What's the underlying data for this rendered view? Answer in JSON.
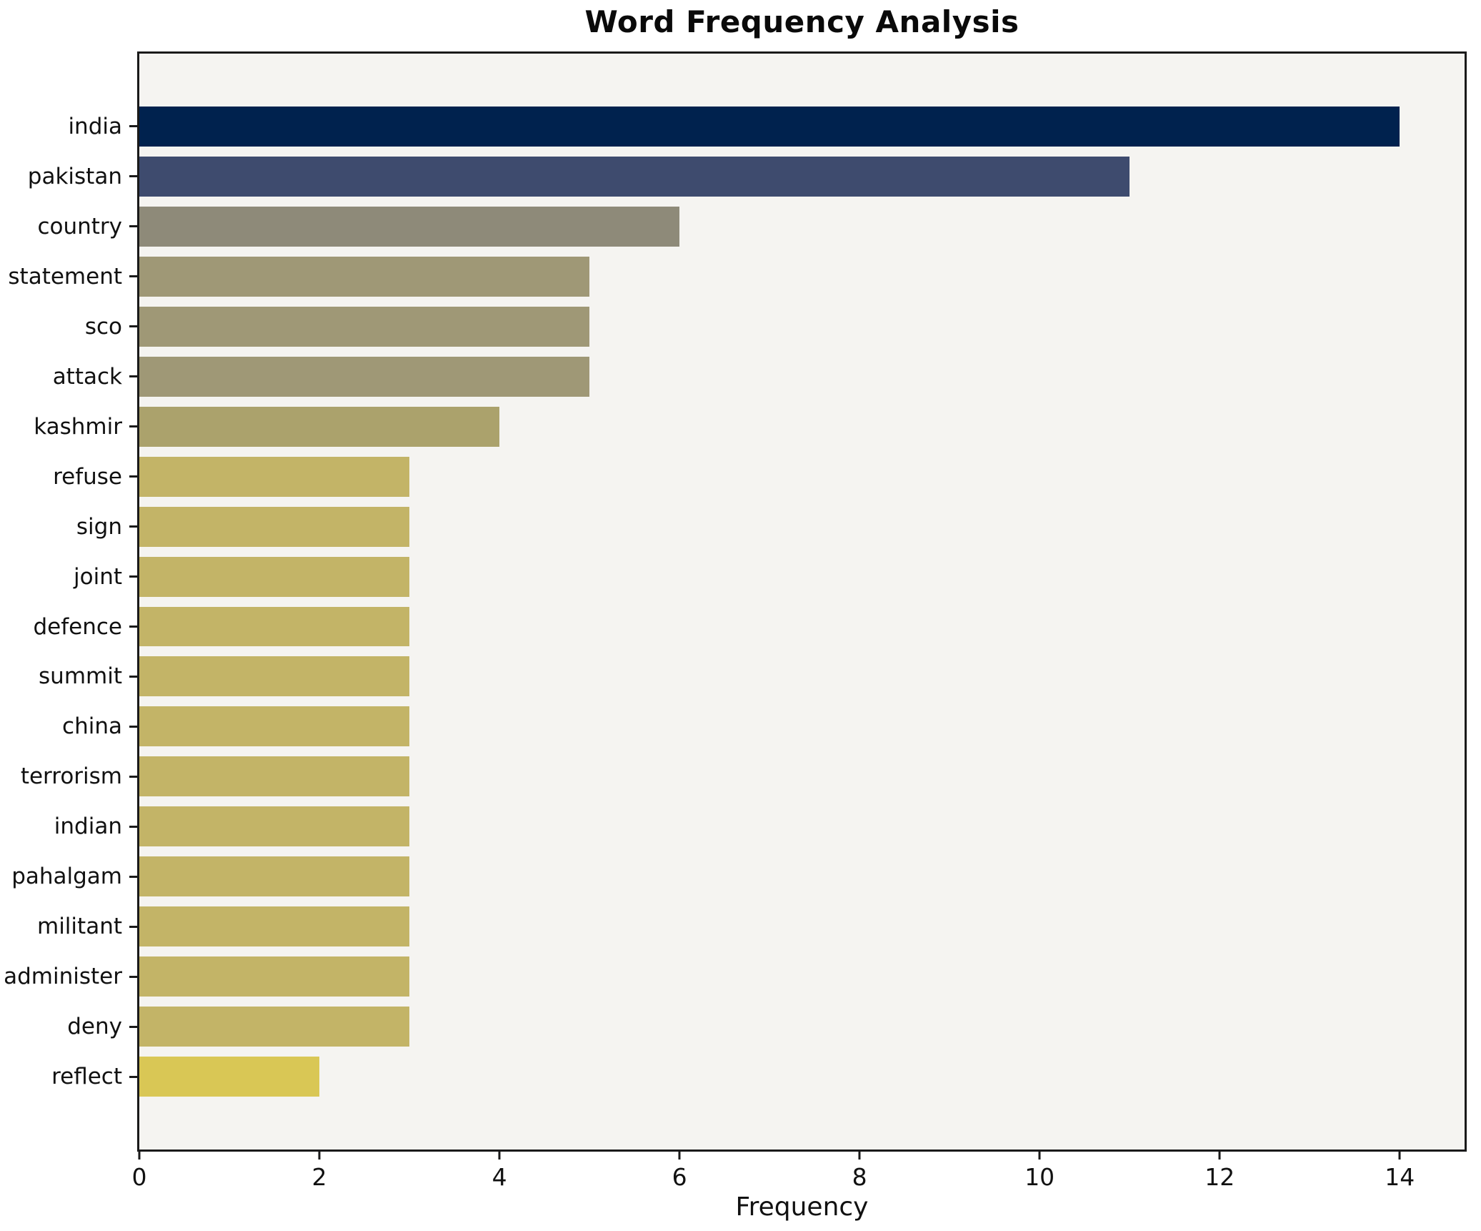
{
  "title": "Word Frequency Analysis",
  "chart_data": {
    "type": "bar",
    "orientation": "horizontal",
    "title": "Word Frequency Analysis",
    "xlabel": "Frequency",
    "ylabel": "",
    "categories": [
      "india",
      "pakistan",
      "country",
      "statement",
      "sco",
      "attack",
      "kashmir",
      "refuse",
      "sign",
      "joint",
      "defence",
      "summit",
      "china",
      "terrorism",
      "indian",
      "pahalgam",
      "militant",
      "administer",
      "deny",
      "reflect"
    ],
    "values": [
      14,
      11,
      6,
      5,
      5,
      5,
      4,
      3,
      3,
      3,
      3,
      3,
      3,
      3,
      3,
      3,
      3,
      3,
      3,
      2
    ],
    "bar_colors": [
      "#00224e",
      "#3e4b6e",
      "#8e8a79",
      "#9f9876",
      "#9f9876",
      "#9f9876",
      "#aba26c",
      "#c3b467",
      "#c3b467",
      "#c3b467",
      "#c3b467",
      "#c3b467",
      "#c3b467",
      "#c3b467",
      "#c3b467",
      "#c3b467",
      "#c3b467",
      "#c3b467",
      "#c3b467",
      "#d9c755"
    ],
    "xlim": [
      0,
      14.72
    ],
    "xticks": [
      0,
      2,
      4,
      6,
      8,
      10,
      12,
      14
    ],
    "grid": false,
    "legend": false,
    "plot_bg": "#f5f4f1",
    "figure_bg": "#ffffff",
    "spine_color": "#1a1a1a"
  }
}
